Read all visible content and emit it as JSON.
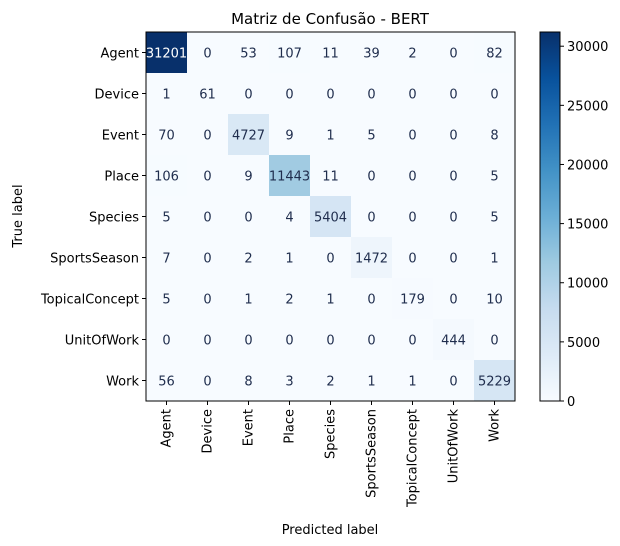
{
  "chart_data": {
    "type": "heatmap",
    "title": "Matriz de Confusão - BERT",
    "xlabel": "Predicted label",
    "ylabel": "True label",
    "labels": [
      "Agent",
      "Device",
      "Event",
      "Place",
      "Species",
      "SportsSeason",
      "TopicalConcept",
      "UnitOfWork",
      "Work"
    ],
    "matrix": [
      [
        31201,
        0,
        53,
        107,
        11,
        39,
        2,
        0,
        82
      ],
      [
        1,
        61,
        0,
        0,
        0,
        0,
        0,
        0,
        0
      ],
      [
        70,
        0,
        4727,
        9,
        1,
        5,
        0,
        0,
        8
      ],
      [
        106,
        0,
        9,
        11443,
        11,
        0,
        0,
        0,
        5
      ],
      [
        5,
        0,
        0,
        4,
        5404,
        0,
        0,
        0,
        5
      ],
      [
        7,
        0,
        2,
        1,
        0,
        1472,
        0,
        0,
        1
      ],
      [
        5,
        0,
        1,
        2,
        1,
        0,
        179,
        0,
        10
      ],
      [
        0,
        0,
        0,
        0,
        0,
        0,
        0,
        444,
        0
      ],
      [
        56,
        0,
        8,
        3,
        2,
        1,
        1,
        0,
        5229
      ]
    ],
    "colormap": "Blues",
    "vmin": 0,
    "vmax": 31201,
    "colorbar_ticks": [
      0,
      5000,
      10000,
      15000,
      20000,
      25000,
      30000
    ]
  }
}
